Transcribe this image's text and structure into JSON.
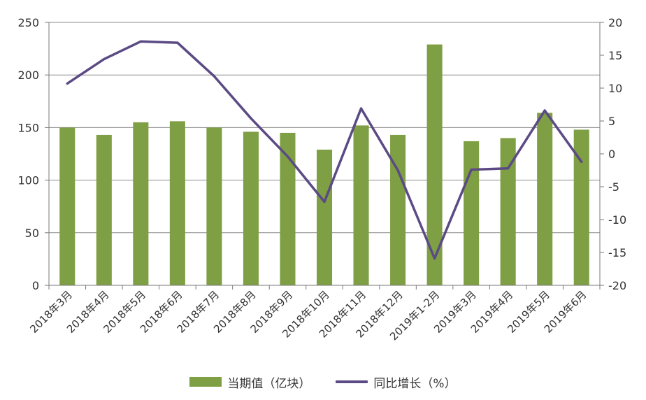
{
  "chart_data": {
    "type": "bar",
    "categories": [
      "2018年3月",
      "2018年4月",
      "2018年5月",
      "2018年6月",
      "2018年7月",
      "2018年8月",
      "2018年9月",
      "2018年10月",
      "2018年11月",
      "2018年12月",
      "2019年1-2月",
      "2019年3月",
      "2019年4月",
      "2019年5月",
      "2019年6月"
    ],
    "series": [
      {
        "name": "当期值（亿块）",
        "type": "bar",
        "axis": "left",
        "color": "#7f9f44",
        "values": [
          150,
          143,
          155,
          156,
          150,
          146,
          145,
          129,
          152,
          143,
          229,
          137,
          140,
          164,
          148
        ]
      },
      {
        "name": "同比增长（%）",
        "type": "line",
        "axis": "right",
        "color": "#5b4a84",
        "values": [
          10.7,
          14.4,
          17.1,
          16.9,
          11.8,
          5.4,
          -0.4,
          -7.3,
          6.9,
          -2.5,
          -15.9,
          -2.4,
          -2.2,
          6.6,
          -1.2
        ]
      }
    ],
    "y_left": {
      "ylim": [
        0,
        250
      ],
      "ticks": [
        0,
        50,
        100,
        150,
        200,
        250
      ]
    },
    "y_right": {
      "ylim": [
        -20,
        20
      ],
      "ticks": [
        -20,
        -15,
        -10,
        -5,
        0,
        5,
        10,
        15,
        20
      ]
    },
    "grid": true,
    "legend_position": "bottom",
    "title": "",
    "xlabel": "",
    "ylabel": ""
  },
  "legend": {
    "bar_label": "当期值（亿块）",
    "line_label": "同比增长（%）"
  }
}
